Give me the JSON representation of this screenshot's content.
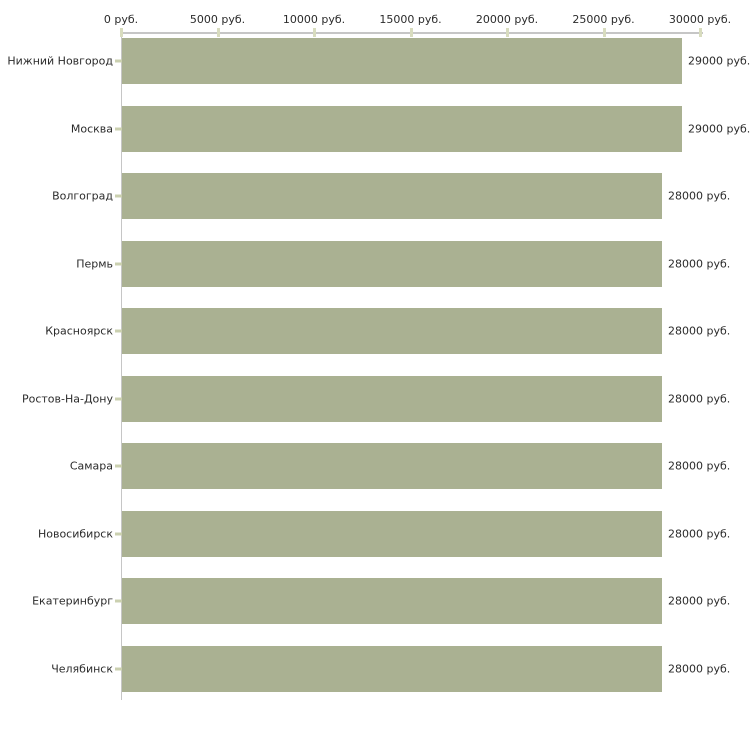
{
  "chart_data": {
    "type": "bar",
    "orientation": "horizontal",
    "title": "",
    "xlabel": "",
    "ylabel": "",
    "xlim": [
      0,
      30000
    ],
    "x_tick_values": [
      0,
      5000,
      10000,
      15000,
      20000,
      25000,
      30000
    ],
    "x_tick_labels": [
      "0 руб.",
      "5000 руб.",
      "10000 руб.",
      "15000 руб.",
      "20000 руб.",
      "25000 руб.",
      "30000 руб."
    ],
    "categories": [
      "Нижний Новгород",
      "Москва",
      "Волгоград",
      "Пермь",
      "Красноярск",
      "Ростов-На-Дону",
      "Самара",
      "Новосибирск",
      "Екатеринбург",
      "Челябинск"
    ],
    "values": [
      29000,
      29000,
      28000,
      28000,
      28000,
      28000,
      28000,
      28000,
      28000,
      28000
    ],
    "value_labels": [
      "29000 руб.",
      "29000 руб.",
      "28000 руб.",
      "28000 руб.",
      "28000 руб.",
      "28000 руб.",
      "28000 руб.",
      "28000 руб.",
      "28000 руб.",
      "28000 руб."
    ],
    "grid": false,
    "legend": null,
    "colors": {
      "bar": "#AAB192",
      "axis_line": "#C6C6C6",
      "tick_mark": "#D8DCBE",
      "category_tick_mark": "#CBD0B0",
      "text": "#2B2B2B",
      "background": "#FFFFFF"
    }
  }
}
